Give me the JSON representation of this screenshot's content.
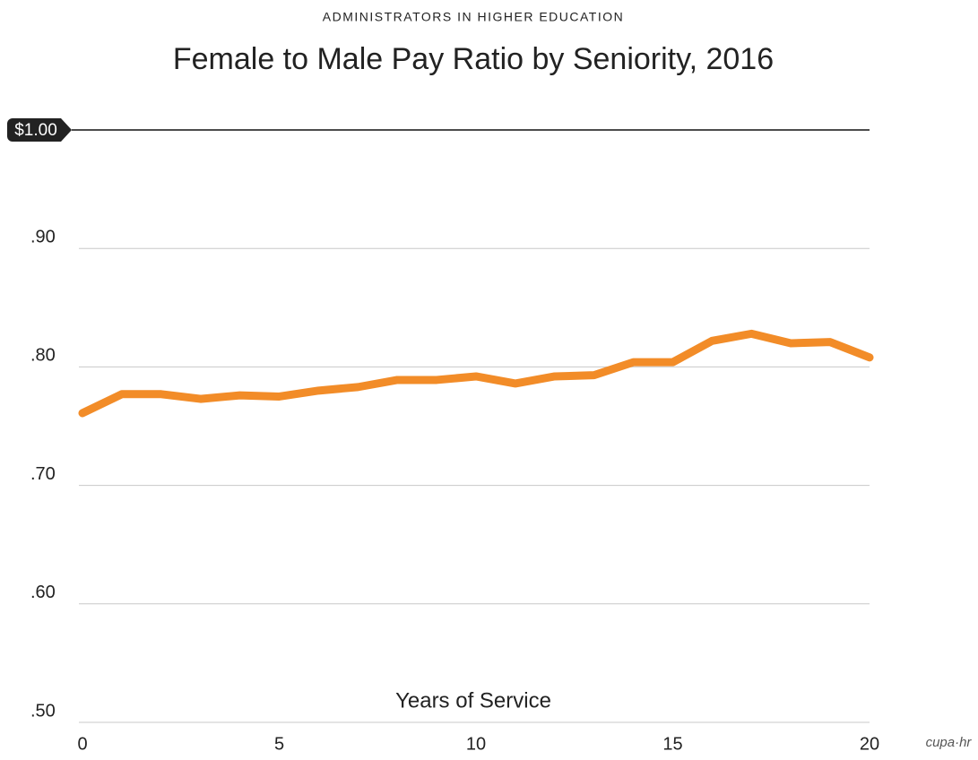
{
  "chart_data": {
    "type": "line",
    "subtitle": "ADMINISTRATORS IN HIGHER EDUCATION",
    "title": "Female to Male Pay Ratio by Seniority, 2016",
    "x_label": "Years of Service",
    "logo": "cupa·hr",
    "x": [
      0,
      1,
      2,
      3,
      4,
      5,
      6,
      7,
      8,
      9,
      10,
      11,
      12,
      13,
      14,
      15,
      16,
      17,
      18,
      19,
      20
    ],
    "values": [
      0.761,
      0.777,
      0.777,
      0.773,
      0.776,
      0.775,
      0.78,
      0.783,
      0.789,
      0.789,
      0.792,
      0.786,
      0.792,
      0.793,
      0.804,
      0.804,
      0.822,
      0.828,
      0.82,
      0.821,
      0.808
    ],
    "color": "#f28c28",
    "xlim": [
      0,
      20
    ],
    "xticks": [
      0,
      5,
      10,
      15,
      20
    ],
    "ylim": [
      0.5,
      1.0
    ],
    "yticks": [
      {
        "value": 0.5,
        "label": ".50"
      },
      {
        "value": 0.6,
        "label": ".60"
      },
      {
        "value": 0.7,
        "label": ".70"
      },
      {
        "value": 0.8,
        "label": ".80"
      },
      {
        "value": 0.9,
        "label": ".90"
      },
      {
        "value": 1.0,
        "label": "$1.00"
      }
    ],
    "grid": true
  }
}
